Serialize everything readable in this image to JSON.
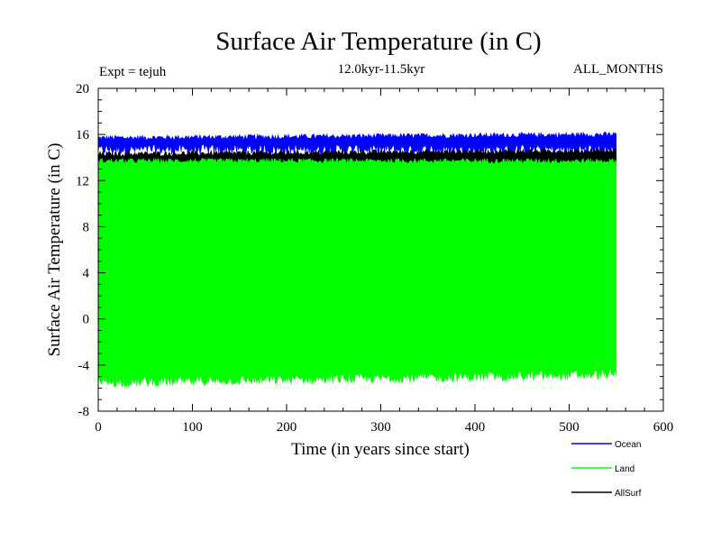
{
  "chart_data": {
    "type": "line",
    "title": "Surface Air Temperature (in C)",
    "subtitle": "12.0kyr-11.5kyr",
    "expt_label": "Expt = tejuh",
    "months_label": "ALL_MONTHS",
    "xlabel": "Time (in years since start)",
    "ylabel": "Surface Air Temperature (in C)",
    "xlim": [
      0,
      600
    ],
    "ylim": [
      -8,
      20
    ],
    "x_ticks": [
      0,
      100,
      200,
      300,
      400,
      500,
      600
    ],
    "y_ticks": [
      -8,
      -4,
      0,
      4,
      8,
      12,
      16,
      20
    ],
    "x_range_of_data": [
      0,
      550
    ],
    "series": [
      {
        "name": "Ocean",
        "color": "#0000ff",
        "low": 14.7,
        "high": 15.7,
        "trend_end_high": 16.0
      },
      {
        "name": "Land",
        "color": "#00ff00",
        "low": -5.5,
        "high": 13.7,
        "trend_end_low": -4.8
      },
      {
        "name": "AllSurf",
        "color": "#000000",
        "low": 13.2,
        "high": 14.3,
        "trend_end_high": 14.6
      }
    ],
    "legend": {
      "placement": "bottom-right",
      "items": [
        {
          "name": "Ocean",
          "color": "#0000ff"
        },
        {
          "name": "Land",
          "color": "#00ff00"
        },
        {
          "name": "AllSurf",
          "color": "#000000"
        }
      ]
    }
  }
}
